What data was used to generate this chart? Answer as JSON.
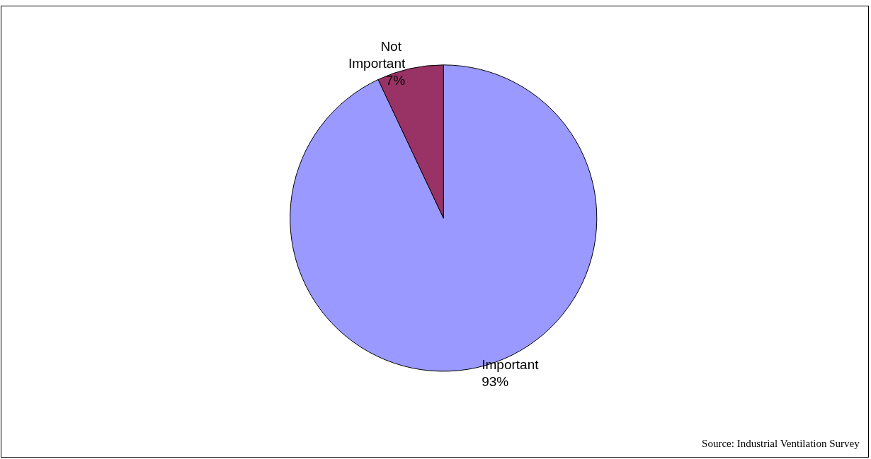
{
  "chart_data": {
    "type": "pie",
    "categories": [
      "Important",
      "Not Important"
    ],
    "values": [
      93,
      7
    ],
    "colors": [
      "#9999ff",
      "#993366"
    ],
    "value_labels": [
      "93%",
      "7%"
    ],
    "annotations": [
      "Source: Industrial Ventilation Survey"
    ]
  }
}
